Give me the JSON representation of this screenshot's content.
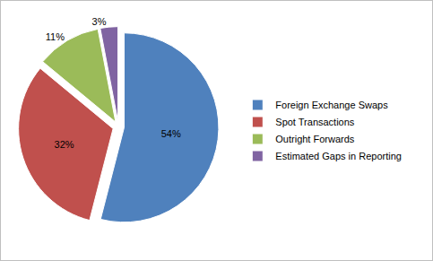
{
  "chart_data": {
    "type": "pie",
    "categories": [
      "Foreign Exchange Swaps",
      "Spot Transactions",
      "Outright Forwards",
      "Estimated Gaps in Reporting"
    ],
    "values": [
      54,
      32,
      11,
      3
    ],
    "value_labels": [
      "54%",
      "32%",
      "11%",
      "3%"
    ],
    "colors": [
      "#4f81bd",
      "#c0504d",
      "#9bbb59",
      "#8064a2"
    ],
    "data_labels": true,
    "legend": "right"
  }
}
